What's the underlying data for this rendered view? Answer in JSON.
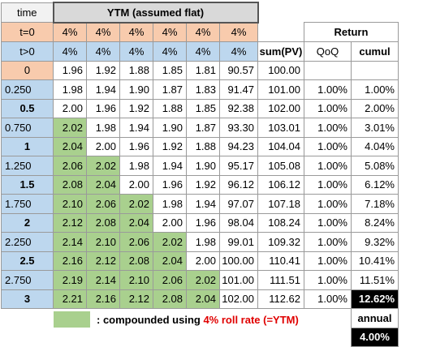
{
  "header": {
    "time_label": "time",
    "ytm_title": "YTM (assumed flat)",
    "t0_label": "t=0",
    "tpos_label": "t>0",
    "t0_rates": [
      "4%",
      "4%",
      "4%",
      "4%",
      "4%",
      "4%"
    ],
    "tpos_rates": [
      "4%",
      "4%",
      "4%",
      "4%",
      "4%",
      "4%"
    ],
    "sum_pv_label": "sum(PV)",
    "return_label": "Return",
    "qoq_label": "QoQ",
    "cumul_label": "cumul"
  },
  "rows": [
    {
      "time": "0",
      "vals": [
        "1.96",
        "1.92",
        "1.88",
        "1.85",
        "1.81",
        "90.57"
      ],
      "sum": "100.00",
      "qoq": "",
      "cumul": ""
    },
    {
      "time": "0.250",
      "vals": [
        "1.98",
        "1.94",
        "1.90",
        "1.87",
        "1.83",
        "91.47"
      ],
      "sum": "101.00",
      "qoq": "1.00%",
      "cumul": "1.00%"
    },
    {
      "time": "0.5",
      "vals": [
        "2.00",
        "1.96",
        "1.92",
        "1.88",
        "1.85",
        "92.38"
      ],
      "sum": "102.00",
      "qoq": "1.00%",
      "cumul": "2.00%"
    },
    {
      "time": "0.750",
      "vals": [
        "2.02",
        "1.98",
        "1.94",
        "1.90",
        "1.87",
        "93.30"
      ],
      "sum": "103.01",
      "qoq": "1.00%",
      "cumul": "3.01%"
    },
    {
      "time": "1",
      "vals": [
        "2.04",
        "2.00",
        "1.96",
        "1.92",
        "1.88",
        "94.23"
      ],
      "sum": "104.04",
      "qoq": "1.00%",
      "cumul": "4.04%"
    },
    {
      "time": "1.250",
      "vals": [
        "2.06",
        "2.02",
        "1.98",
        "1.94",
        "1.90",
        "95.17"
      ],
      "sum": "105.08",
      "qoq": "1.00%",
      "cumul": "5.08%"
    },
    {
      "time": "1.5",
      "vals": [
        "2.08",
        "2.04",
        "2.00",
        "1.96",
        "1.92",
        "96.12"
      ],
      "sum": "106.12",
      "qoq": "1.00%",
      "cumul": "6.12%"
    },
    {
      "time": "1.750",
      "vals": [
        "2.10",
        "2.06",
        "2.02",
        "1.98",
        "1.94",
        "97.07"
      ],
      "sum": "107.18",
      "qoq": "1.00%",
      "cumul": "7.18%"
    },
    {
      "time": "2",
      "vals": [
        "2.12",
        "2.08",
        "2.04",
        "2.00",
        "1.96",
        "98.04"
      ],
      "sum": "108.24",
      "qoq": "1.00%",
      "cumul": "8.24%"
    },
    {
      "time": "2.250",
      "vals": [
        "2.14",
        "2.10",
        "2.06",
        "2.02",
        "1.98",
        "99.01"
      ],
      "sum": "109.32",
      "qoq": "1.00%",
      "cumul": "9.32%"
    },
    {
      "time": "2.5",
      "vals": [
        "2.16",
        "2.12",
        "2.08",
        "2.04",
        "2.00",
        "100.00"
      ],
      "sum": "110.41",
      "qoq": "1.00%",
      "cumul": "10.41%"
    },
    {
      "time": "2.750",
      "vals": [
        "2.19",
        "2.14",
        "2.10",
        "2.06",
        "2.02",
        "101.00"
      ],
      "sum": "111.51",
      "qoq": "1.00%",
      "cumul": "11.51%"
    },
    {
      "time": "3",
      "vals": [
        "2.21",
        "2.16",
        "2.12",
        "2.08",
        "2.04",
        "102.00"
      ],
      "sum": "112.62",
      "qoq": "1.00%",
      "cumul": "12.62%"
    }
  ],
  "annual": {
    "label": "annual",
    "value": "4.00%"
  },
  "legend": {
    "prefix": ": compounded using ",
    "highlight": "4% roll rate (=YTM)"
  },
  "colors": {
    "green": "#a9d08e",
    "blue": "#bdd7ee",
    "peach": "#f8cbad",
    "legend_red": "#e00000"
  }
}
